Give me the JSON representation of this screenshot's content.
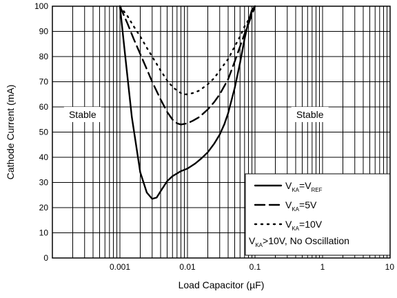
{
  "chart_data": {
    "type": "line",
    "xlabel": "Load Capacitor (µF)",
    "ylabel": "Cathode Current (mA)",
    "x_scale": "log",
    "xlim": [
      0.0001,
      10
    ],
    "ylim": [
      0,
      100
    ],
    "grid": true,
    "x_tick_labels": [
      {
        "value": 0.001,
        "label": "0.001"
      },
      {
        "value": 0.01,
        "label": "0.01"
      },
      {
        "value": 0.1,
        "label": "0.1"
      },
      {
        "value": 1,
        "label": "1"
      },
      {
        "value": 10,
        "label": "10"
      }
    ],
    "y_ticks": [
      0,
      10,
      20,
      30,
      40,
      50,
      60,
      70,
      80,
      90,
      100
    ],
    "annotations": [
      {
        "text": "Stable",
        "x": 0.00028,
        "y": 57
      },
      {
        "text": "Stable",
        "x": 0.65,
        "y": 57
      }
    ],
    "legend": {
      "placement": "bottom-right",
      "note": {
        "prefix": "V",
        "sub": "KA",
        "suffix": ">10V, No Oscillation"
      }
    },
    "series": [
      {
        "legend": {
          "prefix": "V",
          "sub": "KA",
          "mid": "=V",
          "sub2": "REF",
          "suffix": ""
        },
        "dash": "solid",
        "x": [
          0.001,
          0.0012,
          0.0015,
          0.002,
          0.0025,
          0.003,
          0.0035,
          0.004,
          0.005,
          0.006,
          0.008,
          0.01,
          0.013,
          0.016,
          0.02,
          0.025,
          0.03,
          0.035,
          0.04,
          0.05,
          0.06,
          0.07,
          0.08,
          0.09,
          0.1
        ],
        "y": [
          100,
          80,
          56,
          34,
          26,
          23.5,
          24,
          26.5,
          30.5,
          32.5,
          34.5,
          35.5,
          37.5,
          39.5,
          42,
          45.5,
          49,
          53,
          57.5,
          67.5,
          77.5,
          87,
          94,
          98.5,
          100
        ]
      },
      {
        "legend": {
          "prefix": "V",
          "sub": "KA",
          "mid": "",
          "sub2": "",
          "suffix": "=5V"
        },
        "dash": "dashed",
        "x": [
          0.001,
          0.0013,
          0.0016,
          0.002,
          0.0025,
          0.003,
          0.004,
          0.005,
          0.006,
          0.007,
          0.008,
          0.01,
          0.012,
          0.015,
          0.02,
          0.025,
          0.03,
          0.04,
          0.05,
          0.06,
          0.07,
          0.08,
          0.09,
          0.1
        ],
        "y": [
          100,
          93,
          87,
          81,
          75,
          70,
          63,
          58,
          55,
          53.5,
          53,
          53.5,
          54.5,
          56,
          59,
          62,
          65,
          71,
          78,
          84,
          89,
          93,
          96.5,
          100
        ]
      },
      {
        "legend": {
          "prefix": "V",
          "sub": "KA",
          "mid": "",
          "sub2": "",
          "suffix": "=10V"
        },
        "dash": "dotted",
        "x": [
          0.001,
          0.0013,
          0.0016,
          0.002,
          0.0025,
          0.003,
          0.004,
          0.005,
          0.006,
          0.007,
          0.008,
          0.009,
          0.01,
          0.012,
          0.015,
          0.02,
          0.025,
          0.03,
          0.04,
          0.05,
          0.06,
          0.07,
          0.08,
          0.09,
          0.1
        ],
        "y": [
          100,
          96,
          92,
          88,
          83.5,
          80,
          74.5,
          70.5,
          68,
          66.5,
          65.5,
          65,
          65,
          65.5,
          66.5,
          69,
          71.5,
          74.5,
          79,
          84,
          88,
          92,
          94.5,
          97.5,
          100
        ]
      }
    ]
  }
}
